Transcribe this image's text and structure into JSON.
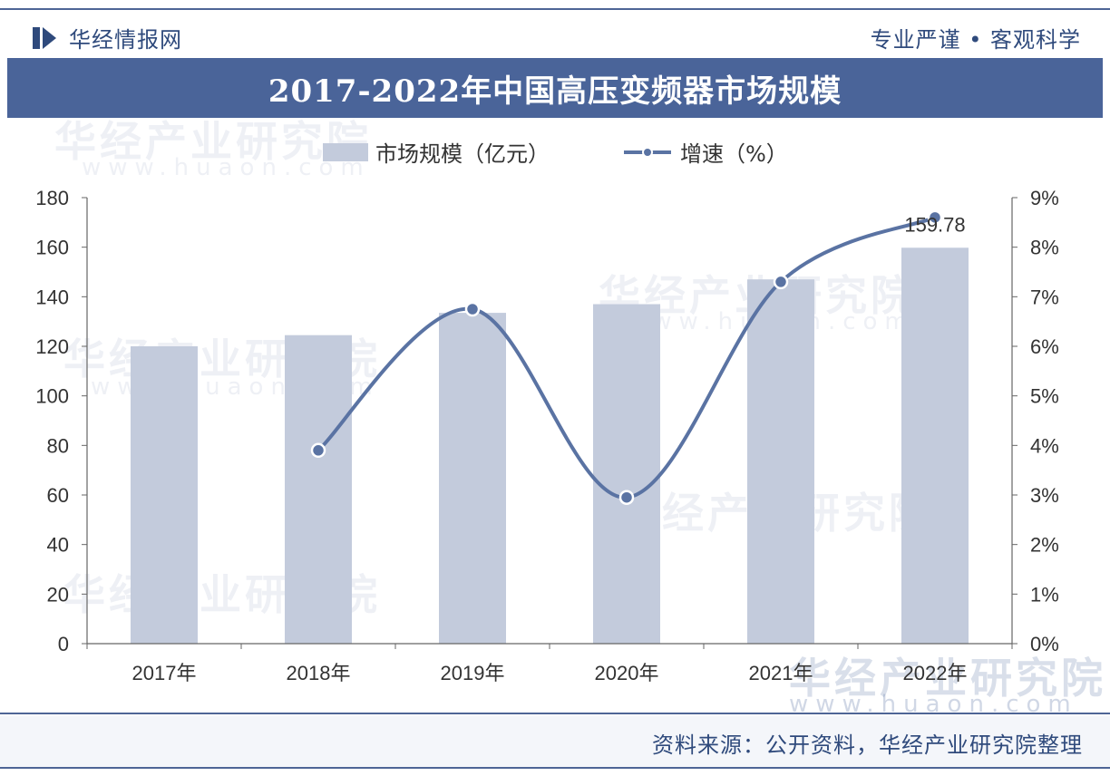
{
  "header": {
    "brand": "华经情报网",
    "slogan": "专业严谨 • 客观科学"
  },
  "title": "2017-2022年中国高压变频器市场规模",
  "legend": {
    "bar_label": "市场规模（亿元）",
    "line_label": "增速（%）"
  },
  "source": "资料来源：公开资料，华经产业研究院整理",
  "watermark": {
    "name": "华经产业研究院",
    "url": "www.huaon.com"
  },
  "colors": {
    "title_bg": "#4a6499",
    "bar": "#c3cbdc",
    "line": "#5a73a3",
    "brand_text": "#2f4a7c"
  },
  "chart_data": {
    "type": "bar",
    "categories": [
      "2017年",
      "2018年",
      "2019年",
      "2020年",
      "2021年",
      "2022年"
    ],
    "series": [
      {
        "name": "市场规模（亿元）",
        "type": "bar",
        "axis": "left",
        "values": [
          120,
          124.5,
          133.5,
          137,
          147,
          159.78
        ]
      },
      {
        "name": "增速（%）",
        "type": "line",
        "axis": "right",
        "values": [
          null,
          3.9,
          6.75,
          2.95,
          7.3,
          8.6
        ]
      }
    ],
    "data_labels": [
      {
        "category": "2022年",
        "text": "159.78"
      }
    ],
    "left_axis": {
      "min": 0,
      "max": 180,
      "step": 20,
      "ticks": [
        "0",
        "20",
        "40",
        "60",
        "80",
        "100",
        "120",
        "140",
        "160",
        "180"
      ]
    },
    "right_axis": {
      "min": 0,
      "max": 9,
      "step": 1,
      "ticks": [
        "0%",
        "1%",
        "2%",
        "3%",
        "4%",
        "5%",
        "6%",
        "7%",
        "8%",
        "9%"
      ]
    },
    "grid": false,
    "legend_position": "top-center"
  }
}
